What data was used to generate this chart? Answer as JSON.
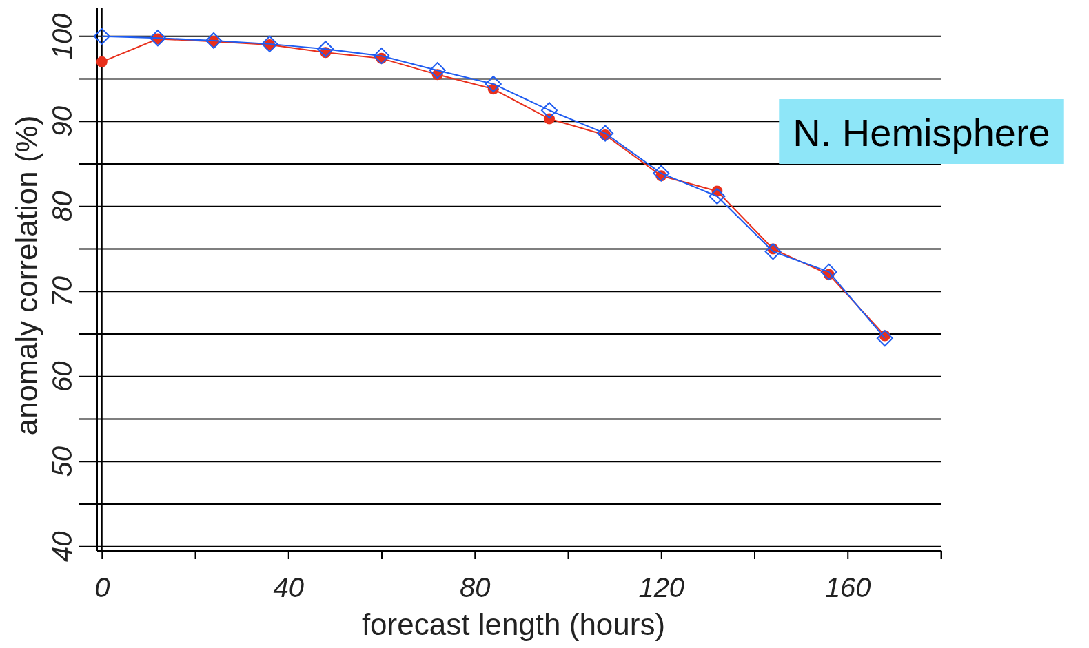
{
  "chart_data": {
    "type": "line",
    "xlabel": "forecast length (hours)",
    "ylabel": "anomaly correlation (%)",
    "x": [
      0,
      12,
      24,
      36,
      48,
      60,
      72,
      84,
      96,
      108,
      120,
      132,
      144,
      156,
      168
    ],
    "series": [
      {
        "color": "#e8301c",
        "marker": "circle",
        "values": [
          97.0,
          99.7,
          99.4,
          99.0,
          98.1,
          97.4,
          95.5,
          93.8,
          90.3,
          88.4,
          83.6,
          81.8,
          75.0,
          72.0,
          64.8
        ]
      },
      {
        "color": "#1f5cf0",
        "marker": "diamond",
        "values": [
          100.0,
          99.8,
          99.5,
          99.1,
          98.5,
          97.7,
          96.0,
          94.4,
          91.3,
          88.6,
          83.9,
          81.2,
          74.7,
          72.3,
          64.5
        ]
      }
    ],
    "xlim": [
      -1,
      180
    ],
    "xticks": [
      0,
      {
        "value": 20,
        "label": null
      },
      40,
      {
        "value": 60,
        "label": null
      },
      80,
      {
        "value": 100,
        "label": null
      },
      120,
      {
        "value": 140,
        "label": null
      },
      160,
      {
        "value": 180,
        "label": null
      }
    ],
    "ylim": [
      39.5,
      103.3
    ],
    "yticks": [
      40,
      {
        "value": 45,
        "label": null
      },
      50,
      {
        "value": 55,
        "label": null
      },
      60,
      {
        "value": 65,
        "label": null
      },
      70,
      {
        "value": 75,
        "label": null
      },
      80,
      {
        "value": 85,
        "label": null
      },
      90,
      {
        "value": 95,
        "label": null
      },
      100
    ],
    "grid": "y",
    "ref_lines": [
      {
        "axis": "x",
        "value": 0,
        "color": "#000000"
      }
    ],
    "annotations": [
      "N. Hemisphere"
    ]
  }
}
